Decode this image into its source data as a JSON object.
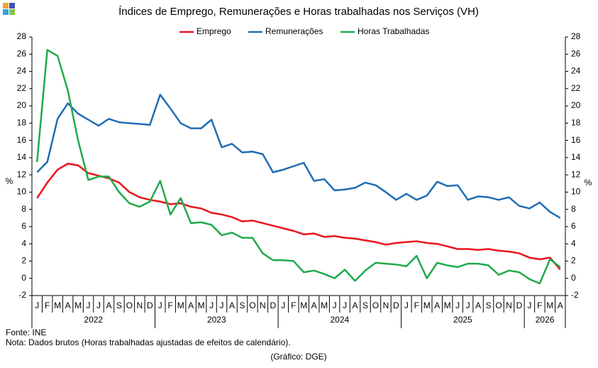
{
  "chart_data": {
    "type": "line",
    "title": "Índices de Emprego, Remunerações e Horas trabalhadas  nos Serviços (VH)",
    "y_label": "%",
    "y2_label": "%",
    "categories": [
      "J",
      "F",
      "M",
      "A",
      "M",
      "J",
      "J",
      "A",
      "S",
      "O",
      "N",
      "D",
      "J",
      "F",
      "M",
      "A",
      "M",
      "J",
      "J",
      "A",
      "S",
      "O",
      "N",
      "D",
      "J",
      "F",
      "M",
      "A",
      "M",
      "J",
      "J",
      "A",
      "S",
      "O",
      "N",
      "D",
      "J",
      "F",
      "M",
      "A",
      "M",
      "J",
      "J",
      "A",
      "S",
      "O",
      "N",
      "D",
      "J",
      "F",
      "M",
      "A"
    ],
    "years": [
      "2022",
      "2023",
      "2024",
      "2025",
      "2026"
    ],
    "series": [
      {
        "name": "Emprego",
        "color": "#e8141b",
        "values": [
          9.3,
          11.1,
          12.6,
          13.3,
          13.1,
          12.2,
          11.9,
          11.6,
          11.1,
          10.0,
          9.4,
          9.1,
          8.9,
          8.6,
          8.7,
          8.3,
          8.1,
          7.6,
          7.4,
          7.1,
          6.6,
          6.7,
          6.4,
          6.1,
          5.8,
          5.5,
          5.1,
          5.2,
          4.8,
          4.9,
          4.7,
          4.6,
          4.4,
          4.2,
          3.9,
          4.1,
          4.2,
          4.3,
          4.1,
          4.0,
          3.7,
          3.4,
          3.4,
          3.3,
          3.4,
          3.2,
          3.1,
          2.9,
          2.4,
          2.2,
          2.4,
          1.0
        ]
      },
      {
        "name": "Remunerações",
        "color": "#1f6db5",
        "values": [
          12.3,
          13.5,
          18.5,
          20.3,
          19.1,
          18.4,
          17.7,
          18.5,
          18.1,
          18.0,
          17.9,
          17.8,
          21.3,
          19.7,
          18.0,
          17.4,
          17.4,
          18.4,
          15.2,
          15.6,
          14.6,
          14.7,
          14.4,
          12.3,
          12.6,
          13.0,
          13.4,
          11.3,
          11.5,
          10.2,
          10.3,
          10.5,
          11.1,
          10.8,
          10.0,
          9.1,
          9.8,
          9.1,
          9.6,
          11.2,
          10.7,
          10.8,
          9.1,
          9.5,
          9.4,
          9.1,
          9.4,
          8.4,
          8.1,
          8.8,
          7.7,
          7.0
        ]
      },
      {
        "name": "Horas Trabalhadas",
        "color": "#1faa4a",
        "values": [
          13.5,
          26.5,
          25.8,
          21.8,
          16.0,
          11.4,
          11.8,
          11.8,
          10.0,
          8.7,
          8.3,
          8.9,
          11.3,
          7.4,
          9.3,
          6.4,
          6.5,
          6.2,
          5.0,
          5.3,
          4.7,
          4.7,
          2.9,
          2.1,
          2.1,
          2.0,
          0.7,
          0.9,
          0.5,
          0.0,
          1.0,
          -0.3,
          0.9,
          1.8,
          1.7,
          1.6,
          1.4,
          2.6,
          0.0,
          1.8,
          1.5,
          1.3,
          1.7,
          1.7,
          1.5,
          0.4,
          0.9,
          0.7,
          -0.1,
          -0.6,
          2.2,
          1.3
        ]
      }
    ],
    "ylim": [
      -2,
      28
    ],
    "yticks": [
      -2,
      0,
      2,
      4,
      6,
      8,
      10,
      12,
      14,
      16,
      18,
      20,
      22,
      24,
      26,
      28
    ],
    "y2lim": [
      -2,
      28
    ],
    "y2ticks": [
      -2,
      0,
      2,
      4,
      6,
      8,
      10,
      12,
      14,
      16,
      18,
      20,
      22,
      24,
      26,
      28
    ],
    "legend": "top",
    "grid": false,
    "source": "Fonte: INE",
    "note": "Nota: Dados brutos (Horas trabalhadas ajustadas de efeitos de calendário).",
    "credit": "(Gráfico: DGE)"
  }
}
